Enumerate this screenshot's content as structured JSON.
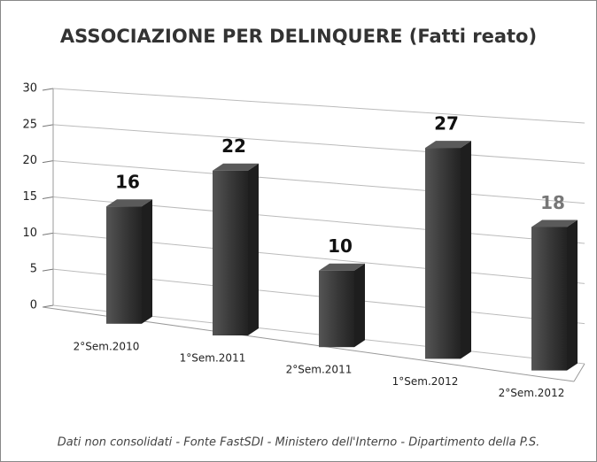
{
  "chart_data": {
    "type": "bar3d",
    "title": "ASSOCIAZIONE PER DELINQUERE (Fatti reato)",
    "categories": [
      "2°Sem.2010",
      "1°Sem.2011",
      "2°Sem.2011",
      "1°Sem.2012",
      "2°Sem.2012"
    ],
    "values": [
      16,
      22,
      10,
      27,
      18
    ],
    "color": "#3c3c3c",
    "ylim": [
      0,
      30
    ],
    "yticks": [
      0,
      5,
      10,
      15,
      20,
      25,
      30
    ],
    "grid": true,
    "footnote": "Dati non consolidati - Fonte FastSDI - Ministero dell'Interno - Dipartimento della P.S."
  }
}
